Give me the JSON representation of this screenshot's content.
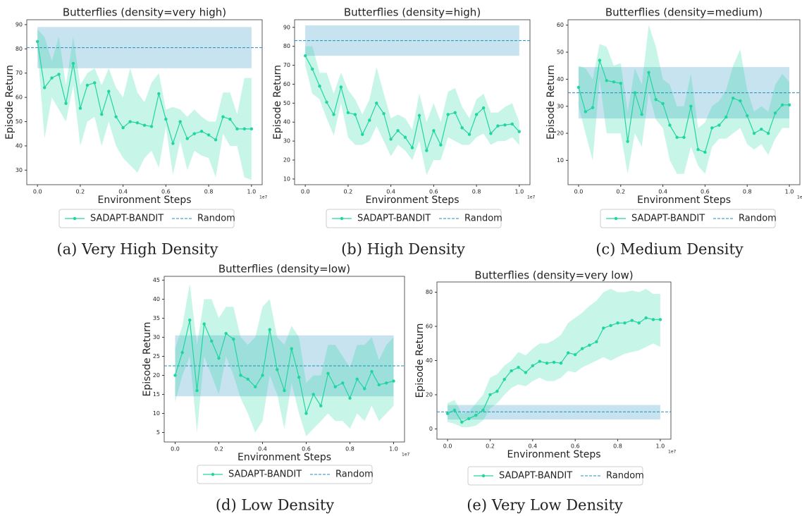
{
  "chart_data": [
    {
      "type": "line",
      "title": "Butterflies (density=very high)",
      "xlabel": "Environment Steps",
      "ylabel": "Episode Return",
      "x_offset_label": "1e7",
      "caption": "(a) Very High Density",
      "x": [
        0,
        0.033,
        0.067,
        0.1,
        0.133,
        0.167,
        0.2,
        0.233,
        0.267,
        0.3,
        0.333,
        0.367,
        0.4,
        0.433,
        0.467,
        0.5,
        0.533,
        0.567,
        0.6,
        0.633,
        0.667,
        0.7,
        0.733,
        0.767,
        0.8,
        0.833,
        0.867,
        0.9,
        0.933,
        0.967,
        1.0
      ],
      "xlim": [
        -0.05,
        1.05
      ],
      "xticks": [
        {
          "value": 0,
          "label": "0.0"
        },
        0.2,
        0.4,
        0.6,
        0.8,
        {
          "value": 1,
          "label": "1.0"
        }
      ],
      "ylim": [
        24,
        92
      ],
      "yticks": [
        30,
        40,
        50,
        60,
        70,
        80,
        90
      ],
      "series": [
        {
          "name": "SADAPT-BANDIT",
          "color": "#20d6a0",
          "values": [
            83,
            64,
            68,
            69.5,
            57.5,
            74,
            55.5,
            65,
            66,
            53,
            62.5,
            52,
            47.5,
            50,
            49.5,
            48.5,
            48,
            61.5,
            51,
            41,
            50,
            43,
            45,
            46,
            44.5,
            42.5,
            52,
            51,
            47,
            47,
            47
          ],
          "lower": [
            80,
            43,
            60,
            55,
            50,
            65,
            40,
            50,
            52,
            40,
            50,
            40,
            35,
            32,
            29,
            35,
            38,
            31,
            48,
            28,
            42,
            30,
            38,
            36,
            35,
            27,
            45,
            40,
            40,
            27,
            26
          ],
          "upper": [
            88,
            85,
            75,
            85,
            65,
            85,
            65,
            70,
            72,
            65,
            72,
            64,
            60,
            72,
            62,
            58,
            66,
            70,
            55,
            56,
            55,
            52,
            55,
            52,
            50,
            50,
            62,
            62,
            53,
            68,
            68
          ]
        },
        {
          "name": "Random",
          "color": "#1f8fbf",
          "value": 80.5,
          "lower": 72,
          "upper": 89
        }
      ]
    },
    {
      "type": "line",
      "title": "Butterflies (density=high)",
      "xlabel": "Environment Steps",
      "ylabel": "Episode Return",
      "x_offset_label": "1e7",
      "caption": "(b) High Density",
      "x": [
        0,
        0.033,
        0.067,
        0.1,
        0.133,
        0.167,
        0.2,
        0.233,
        0.267,
        0.3,
        0.333,
        0.367,
        0.4,
        0.433,
        0.467,
        0.5,
        0.533,
        0.567,
        0.6,
        0.633,
        0.667,
        0.7,
        0.733,
        0.767,
        0.8,
        0.833,
        0.867,
        0.9,
        0.933,
        0.967,
        1.0
      ],
      "xlim": [
        -0.05,
        1.05
      ],
      "xticks": [
        {
          "value": 0,
          "label": "0.0"
        },
        0.2,
        0.4,
        0.6,
        0.8,
        {
          "value": 1,
          "label": "1.0"
        }
      ],
      "ylim": [
        7,
        94
      ],
      "yticks": [
        10,
        20,
        30,
        40,
        50,
        60,
        70,
        80,
        90
      ],
      "series": [
        {
          "name": "SADAPT-BANDIT",
          "color": "#20d6a0",
          "values": [
            75,
            68,
            59,
            50.5,
            44,
            58.5,
            45,
            44,
            33.5,
            41,
            50,
            44.5,
            31,
            35.5,
            32,
            26.5,
            43.5,
            25,
            35.5,
            28,
            44,
            45,
            37,
            33.5,
            44,
            47.5,
            34,
            38,
            38.5,
            39,
            35
          ],
          "lower": [
            70,
            55,
            52,
            42,
            33,
            50,
            32,
            28,
            28,
            30,
            38,
            30,
            22,
            28,
            25,
            20,
            30,
            12,
            20,
            20,
            32,
            30,
            28,
            28,
            32,
            34,
            28,
            30,
            30,
            32,
            28
          ],
          "upper": [
            80,
            80,
            66,
            66,
            55,
            66,
            57,
            52,
            44,
            52,
            69,
            55,
            42,
            44,
            42,
            36,
            55,
            40,
            50,
            40,
            56,
            58,
            48,
            42,
            52,
            55,
            45,
            45,
            48,
            50,
            40
          ]
        },
        {
          "name": "Random",
          "color": "#1f8fbf",
          "value": 83,
          "lower": 75,
          "upper": 91
        }
      ]
    },
    {
      "type": "line",
      "title": "Butterflies (density=medium)",
      "xlabel": "Environment Steps",
      "ylabel": "Episode Return",
      "x_offset_label": "1e7",
      "caption": "(c) Medium Density",
      "x": [
        0,
        0.033,
        0.067,
        0.1,
        0.133,
        0.167,
        0.2,
        0.233,
        0.267,
        0.3,
        0.333,
        0.367,
        0.4,
        0.433,
        0.467,
        0.5,
        0.533,
        0.567,
        0.6,
        0.633,
        0.667,
        0.7,
        0.733,
        0.767,
        0.8,
        0.833,
        0.867,
        0.9,
        0.933,
        0.967,
        1.0
      ],
      "xlim": [
        -0.05,
        1.05
      ],
      "xticks": [
        {
          "value": 0,
          "label": "0.0"
        },
        0.2,
        0.4,
        0.6,
        0.8,
        {
          "value": 1,
          "label": "1.0"
        }
      ],
      "ylim": [
        1,
        62
      ],
      "yticks": [
        10,
        20,
        30,
        40,
        50,
        60
      ],
      "series": [
        {
          "name": "SADAPT-BANDIT",
          "color": "#20d6a0",
          "values": [
            37,
            28,
            29.5,
            47,
            39.5,
            39,
            38.5,
            17,
            35,
            27,
            42.5,
            32.5,
            31,
            23,
            18.5,
            18.5,
            30,
            14,
            13,
            22,
            23,
            26,
            33,
            32,
            26.5,
            20,
            21.5,
            20,
            27.5,
            30.5,
            30.5
          ],
          "lower": [
            30,
            20,
            10,
            40,
            20,
            20,
            20,
            5,
            20,
            15,
            35,
            25,
            22,
            10,
            5,
            5,
            15,
            8,
            5,
            15,
            18,
            18,
            20,
            22,
            16,
            14,
            16,
            12,
            18,
            22,
            22
          ],
          "upper": [
            45,
            44,
            40,
            53,
            52,
            45,
            46,
            28,
            44,
            38,
            60,
            52,
            40,
            38,
            30,
            30,
            42,
            22,
            24,
            30,
            32,
            36,
            45,
            51,
            36,
            28,
            30,
            28,
            38,
            42,
            39
          ]
        },
        {
          "name": "Random",
          "color": "#1f8fbf",
          "value": 35,
          "lower": 25.5,
          "upper": 44.5
        }
      ]
    },
    {
      "type": "line",
      "title": "Butterflies (density=low)",
      "xlabel": "Environment Steps",
      "ylabel": "Episode Return",
      "x_offset_label": "1e7",
      "caption": "(d) Low Density",
      "x": [
        0,
        0.033,
        0.067,
        0.1,
        0.133,
        0.167,
        0.2,
        0.233,
        0.267,
        0.3,
        0.333,
        0.367,
        0.4,
        0.433,
        0.467,
        0.5,
        0.533,
        0.567,
        0.6,
        0.633,
        0.667,
        0.7,
        0.733,
        0.767,
        0.8,
        0.833,
        0.867,
        0.9,
        0.933,
        0.967,
        1.0
      ],
      "xlim": [
        -0.05,
        1.05
      ],
      "xticks": [
        {
          "value": 0,
          "label": "0.0"
        },
        0.2,
        0.4,
        0.6,
        0.8,
        {
          "value": 1,
          "label": "1.0"
        }
      ],
      "ylim": [
        2.5,
        46
      ],
      "yticks": [
        5,
        10,
        15,
        20,
        25,
        30,
        35,
        40,
        45
      ],
      "series": [
        {
          "name": "SADAPT-BANDIT",
          "color": "#20d6a0",
          "values": [
            20,
            26,
            34.5,
            16,
            33.5,
            29,
            24.5,
            31,
            29.5,
            20,
            19,
            17,
            20,
            32,
            21.5,
            16,
            27,
            19.5,
            10,
            15,
            12,
            20.5,
            17,
            18,
            14,
            19,
            16.5,
            21,
            17.5,
            18,
            18.5
          ],
          "lower": [
            13,
            20,
            25,
            5,
            25,
            20,
            15,
            25,
            20,
            14,
            10,
            5,
            8,
            20,
            15,
            6,
            18,
            10,
            4,
            6,
            8,
            10,
            8,
            8,
            6,
            10,
            8,
            12,
            8,
            10,
            12
          ],
          "upper": [
            27,
            33,
            44,
            28,
            40,
            40,
            35,
            38,
            38,
            30,
            28,
            30,
            38,
            40,
            30,
            28,
            33,
            30,
            18,
            20,
            20,
            28,
            28,
            25,
            22,
            28,
            28,
            30,
            24,
            28,
            30
          ]
        },
        {
          "name": "Random",
          "color": "#1f8fbf",
          "value": 22.5,
          "lower": 14.5,
          "upper": 30.5
        }
      ]
    },
    {
      "type": "line",
      "title": "Butterflies (density=very low)",
      "xlabel": "Environment Steps",
      "ylabel": "Episode Return",
      "x_offset_label": "1e7",
      "caption": "(e) Very Low Density",
      "x": [
        0,
        0.033,
        0.067,
        0.1,
        0.133,
        0.167,
        0.2,
        0.233,
        0.267,
        0.3,
        0.333,
        0.367,
        0.4,
        0.433,
        0.467,
        0.5,
        0.533,
        0.567,
        0.6,
        0.633,
        0.667,
        0.7,
        0.733,
        0.767,
        0.8,
        0.833,
        0.867,
        0.9,
        0.933,
        0.967,
        1.0
      ],
      "xlim": [
        -0.05,
        1.05
      ],
      "xticks": [
        {
          "value": 0,
          "label": "0.0"
        },
        0.2,
        0.4,
        0.6,
        0.8,
        {
          "value": 1,
          "label": "1.0"
        }
      ],
      "ylim": [
        -6,
        86
      ],
      "yticks": [
        0,
        20,
        40,
        60,
        80
      ],
      "series": [
        {
          "name": "SADAPT-BANDIT",
          "color": "#20d6a0",
          "values": [
            9,
            11,
            4,
            6,
            8,
            11,
            20,
            22,
            29,
            34,
            36,
            33,
            37,
            39.5,
            38.5,
            39,
            38.5,
            44.5,
            43.5,
            47,
            49,
            51,
            59,
            60.5,
            62,
            62,
            63.5,
            62,
            65,
            64,
            64
          ],
          "lower": [
            4,
            3,
            1,
            1,
            2,
            5,
            12,
            15,
            20,
            24,
            26,
            25,
            28,
            30,
            28,
            28,
            30,
            34,
            33,
            36,
            38,
            40,
            42,
            40,
            42,
            44,
            45,
            46,
            48,
            50,
            48
          ],
          "upper": [
            15,
            17,
            9,
            10,
            15,
            20,
            30,
            32,
            37,
            40,
            45,
            43,
            47,
            50,
            50,
            52,
            55,
            62,
            65,
            68,
            72,
            75,
            80,
            82,
            80,
            80,
            81,
            80,
            82,
            79,
            79
          ]
        },
        {
          "name": "Random",
          "color": "#1f8fbf",
          "value": 10,
          "lower": 5.5,
          "upper": 14
        }
      ]
    }
  ]
}
